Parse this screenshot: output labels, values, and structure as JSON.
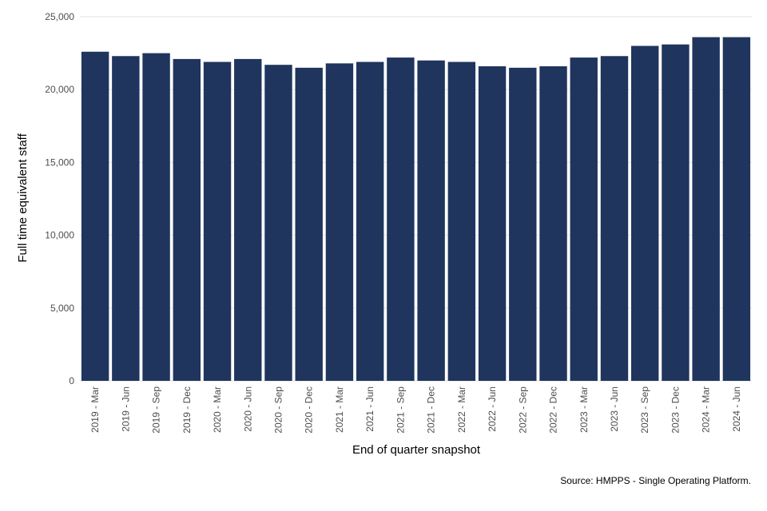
{
  "chart_data": {
    "type": "bar",
    "title": "",
    "xlabel": "End of quarter snapshot",
    "ylabel": "Full time equivalent staff",
    "caption": "Source: HMPPS - Single Operating Platform.",
    "ylim": [
      0,
      25000
    ],
    "yticks": [
      0,
      5000,
      10000,
      15000,
      20000,
      25000
    ],
    "ytick_labels": [
      "0",
      "5,000",
      "10,000",
      "15,000",
      "20,000",
      "25,000"
    ],
    "grid": "horizontal",
    "legend": "none",
    "bar_color": "#1f355e",
    "categories": [
      "2019 - Mar",
      "2019 - Jun",
      "2019 - Sep",
      "2019 - Dec",
      "2020 - Mar",
      "2020 - Jun",
      "2020 - Sep",
      "2020 - Dec",
      "2021 - Mar",
      "2021 - Jun",
      "2021 - Sep",
      "2021 - Dec",
      "2022 - Mar",
      "2022 - Jun",
      "2022 - Sep",
      "2022 - Dec",
      "2023 - Mar",
      "2023 - Jun",
      "2023 - Sep",
      "2023 - Dec",
      "2024 - Mar",
      "2024 - Jun"
    ],
    "values": [
      22600,
      22300,
      22500,
      22100,
      21900,
      22100,
      21700,
      21500,
      21800,
      21900,
      22200,
      22000,
      21900,
      21600,
      21500,
      21600,
      22200,
      22300,
      23000,
      23100,
      23600,
      23600
    ]
  }
}
